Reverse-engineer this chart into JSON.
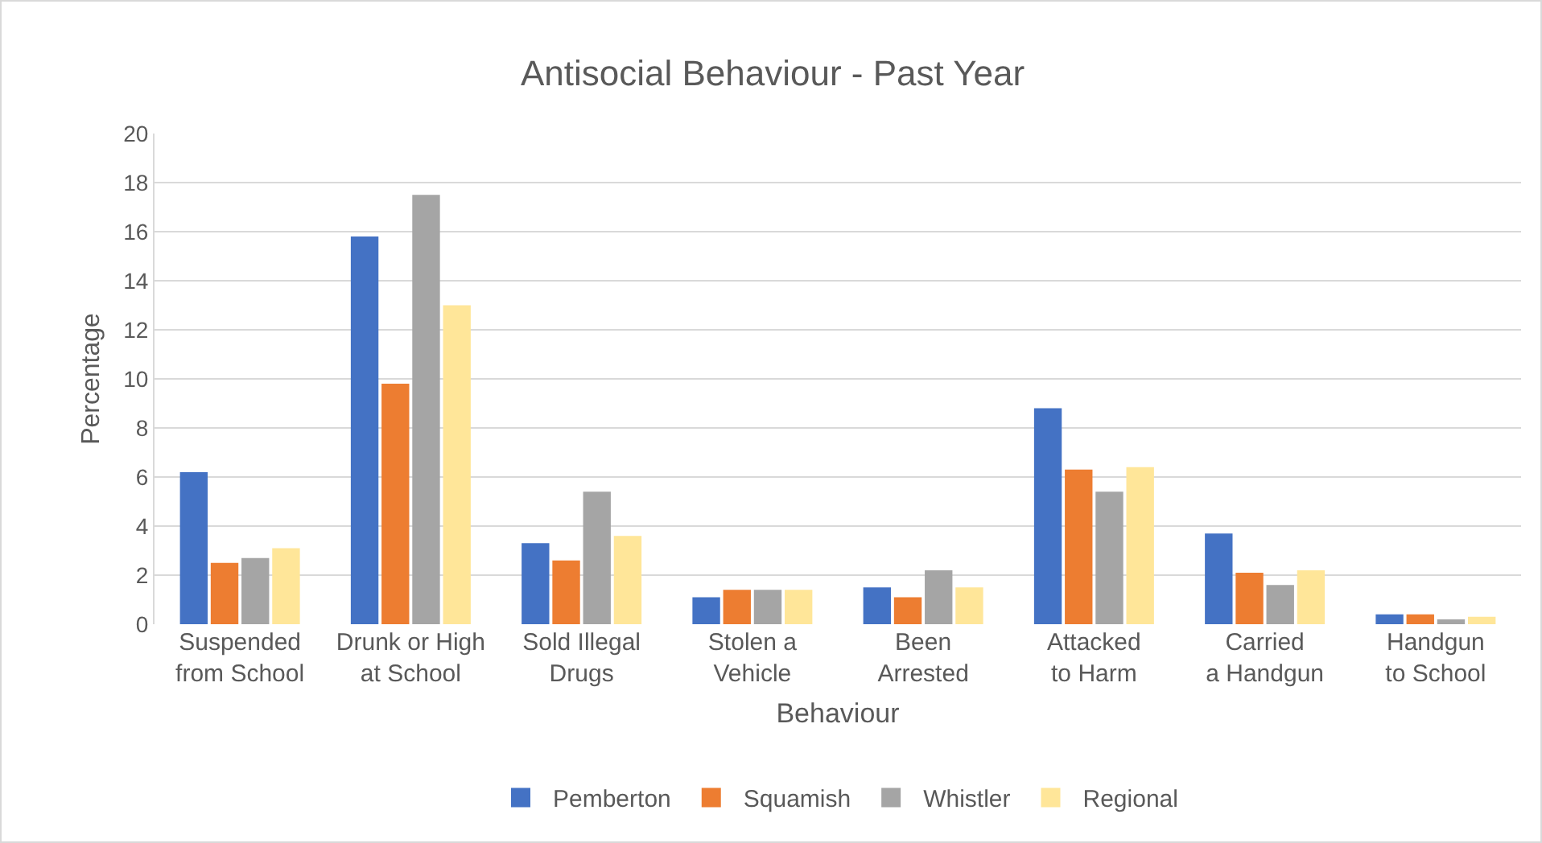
{
  "chart_data": {
    "type": "bar",
    "title": "Antisocial Behaviour - Past Year",
    "xlabel": "Behaviour",
    "ylabel": "Percentage",
    "categories": [
      "Suspended from School",
      "Drunk or High at School",
      "Sold Illegal Drugs",
      "Stolen a Vehicle",
      "Been Arrested",
      "Attacked to Harm",
      "Carried a Handgun",
      "Handgun to School"
    ],
    "series": [
      {
        "name": "Pemberton",
        "color": "#4472c4",
        "values": [
          6.2,
          15.8,
          3.3,
          1.1,
          1.5,
          8.8,
          3.7,
          0.4
        ]
      },
      {
        "name": "Squamish",
        "color": "#ed7d31",
        "values": [
          2.5,
          9.8,
          2.6,
          1.4,
          1.1,
          6.3,
          2.1,
          0.4
        ]
      },
      {
        "name": "Whistler",
        "color": "#a5a5a5",
        "values": [
          2.7,
          17.5,
          5.4,
          1.4,
          2.2,
          5.4,
          1.6,
          0.2
        ]
      },
      {
        "name": "Regional",
        "color": "#ffe699",
        "values": [
          3.1,
          13.0,
          3.6,
          1.4,
          1.5,
          6.4,
          2.2,
          0.3
        ]
      }
    ],
    "ylim": [
      0,
      20
    ],
    "yticks": [
      0,
      2,
      4,
      6,
      8,
      10,
      12,
      14,
      16,
      18,
      20
    ],
    "grid": "y",
    "legend": "bottom"
  }
}
